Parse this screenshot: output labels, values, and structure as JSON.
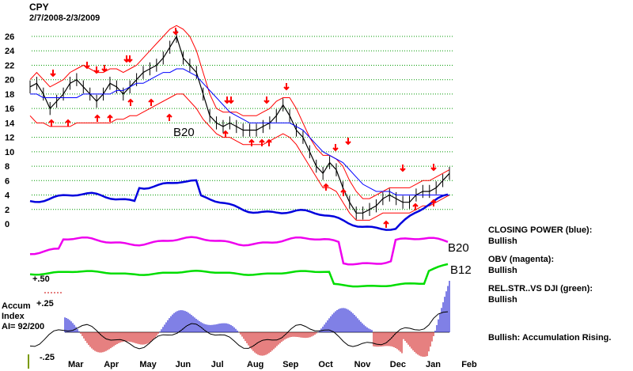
{
  "header": {
    "symbol": "CPY",
    "date_range": "2/7/2008-2/3/2009"
  },
  "colors": {
    "price_bars": "#000000",
    "bands": "#ff0000",
    "moving_avg": "#0000ff",
    "closing_power": "#0000dd",
    "obv": "#ee00ee",
    "rel_strength": "#00dd00",
    "accum_pos": "#0000cc",
    "accum_neg": "#cc0000",
    "grid": "#009900",
    "arrows": "#ff0000"
  },
  "legend": {
    "closing_power": "CLOSING POWER (blue):",
    "closing_power_state": "Bullish",
    "obv": "OBV (magenta):",
    "obv_state": "Bullish",
    "relstr": "REL.STR..VS DJI (green):",
    "relstr_state": "Bullish",
    "summary": "Bullish: Accumulation Rising."
  },
  "annotations": {
    "b20_mid": "B20",
    "b20_right": "B20",
    "b12": "B12"
  },
  "accum": {
    "title1": "Accum",
    "title2": "Index",
    "ai": "AI= 92/200",
    "level_top": "+.50",
    "level_mid": "+.25",
    "level_bottom": "-.25"
  },
  "chart_data": {
    "type": "line",
    "title": "CPY",
    "subtitle": "2/7/2008-2/3/2009",
    "y_ticks": [
      "26",
      "24",
      "22",
      "20",
      "18",
      "16",
      "14",
      "12",
      "10",
      "8",
      "6",
      "4",
      "2",
      "0"
    ],
    "ylim": [
      0,
      26
    ],
    "months": [
      "Mar",
      "Apr",
      "May",
      "Jun",
      "Jul",
      "Aug",
      "Sep",
      "Oct",
      "Nov",
      "Dec",
      "Jan",
      "Feb"
    ],
    "series": [
      {
        "name": "Price",
        "values": [
          19,
          19.5,
          18,
          16,
          17,
          18,
          19.5,
          20,
          19,
          18,
          17,
          18,
          19.5,
          19,
          18,
          19,
          20,
          21,
          21.5,
          22,
          23,
          24.5,
          26,
          23,
          22,
          21,
          18,
          15,
          14,
          13.5,
          14,
          13.5,
          13,
          13,
          13,
          13.5,
          14,
          15,
          16.5,
          15,
          13,
          12,
          10,
          8,
          7,
          8.5,
          7.5,
          5,
          3,
          1.5,
          1.5,
          2,
          2.5,
          3.5,
          4,
          3.5,
          3,
          3,
          4,
          4.5,
          4.5,
          5,
          6,
          7
        ]
      },
      {
        "name": "Upper band",
        "values": [
          20,
          21,
          20,
          19,
          19.5,
          20,
          21,
          21.5,
          22,
          21.5,
          21,
          21,
          21.5,
          21.5,
          21,
          21.5,
          22,
          23,
          24,
          25,
          26,
          27,
          27.5,
          27,
          26,
          24,
          21,
          18,
          16,
          15.5,
          15.5,
          15.5,
          15,
          15,
          15,
          15.5,
          16,
          17,
          17.5,
          17.5,
          16,
          14,
          12,
          10.5,
          9.5,
          9.5,
          9,
          8,
          6,
          4.5,
          3.5,
          3.5,
          4,
          4.5,
          5,
          5,
          5,
          5,
          5.5,
          6,
          6,
          6.5,
          7,
          7.5
        ]
      },
      {
        "name": "Lower band",
        "values": [
          15,
          14,
          14,
          13.5,
          13.5,
          13.5,
          13.5,
          14,
          14,
          14,
          14,
          14,
          14,
          14.5,
          14.5,
          15,
          15,
          15.5,
          16,
          16.5,
          17,
          17.5,
          18,
          18,
          17,
          16,
          14.5,
          13.5,
          12.5,
          12,
          12,
          11.5,
          11,
          11,
          11,
          11,
          11.5,
          12,
          12.5,
          12,
          11,
          9.5,
          8,
          6.5,
          5,
          5,
          4.5,
          3,
          1.5,
          0.5,
          0.5,
          0.5,
          1,
          1.5,
          1.5,
          1.5,
          1.5,
          1.5,
          2,
          2.5,
          2.5,
          3,
          3.5,
          4
        ]
      },
      {
        "name": "Moving average",
        "values": [
          18,
          18,
          17.5,
          17.5,
          17.5,
          17.5,
          17.5,
          17.5,
          18,
          18,
          18,
          18,
          18,
          18.5,
          18.5,
          19,
          19.5,
          19.5,
          20,
          20.5,
          21,
          21,
          21.5,
          21.5,
          21,
          20.5,
          19.5,
          18.5,
          17.5,
          16.5,
          15.5,
          15,
          14.5,
          14,
          14,
          14,
          14,
          14,
          14,
          14,
          13.5,
          13,
          12,
          11,
          10,
          9.5,
          9,
          8.5,
          7.5,
          6.5,
          5.5,
          5,
          4.5,
          4.5,
          4.5,
          4,
          4,
          4,
          4,
          4,
          4,
          4,
          4,
          4
        ]
      }
    ]
  }
}
